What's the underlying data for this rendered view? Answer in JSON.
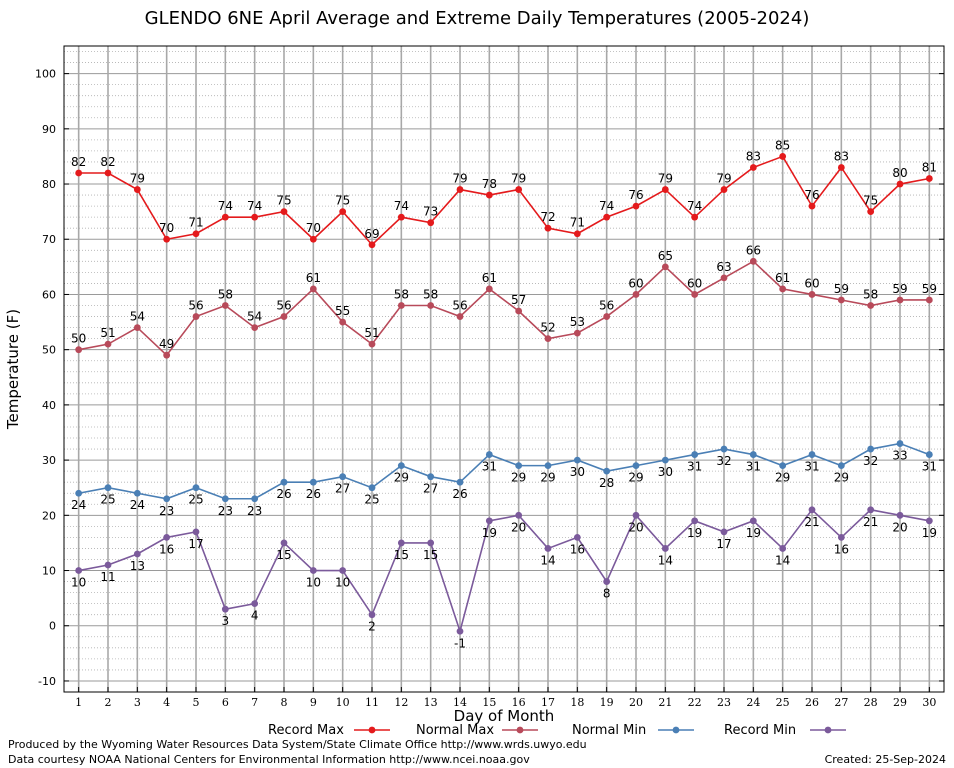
{
  "chart_data": {
    "type": "line",
    "title": "GLENDO 6NE April Average and Extreme Daily Temperatures (2005-2024)",
    "xlabel": "Day of Month",
    "ylabel": "Temperature (F)",
    "xlim": [
      0.5,
      30.5
    ],
    "ylim": [
      -12,
      105
    ],
    "x": [
      1,
      2,
      3,
      4,
      5,
      6,
      7,
      8,
      9,
      10,
      11,
      12,
      13,
      14,
      15,
      16,
      17,
      18,
      19,
      20,
      21,
      22,
      23,
      24,
      25,
      26,
      27,
      28,
      29,
      30
    ],
    "yticks": [
      -10,
      0,
      10,
      20,
      30,
      40,
      50,
      60,
      70,
      80,
      90,
      100
    ],
    "grid": true,
    "legend_position": "bottom",
    "series": [
      {
        "name": "Record Max",
        "color": "#e41a1c",
        "label_position": "above",
        "values": [
          82,
          82,
          79,
          70,
          71,
          74,
          74,
          75,
          70,
          75,
          69,
          74,
          73,
          79,
          78,
          79,
          72,
          71,
          74,
          76,
          79,
          74,
          79,
          83,
          85,
          76,
          83,
          75,
          80,
          81
        ]
      },
      {
        "name": "Normal Max",
        "color": "#b84a5a",
        "label_position": "above",
        "values": [
          50,
          51,
          54,
          49,
          56,
          58,
          54,
          56,
          61,
          55,
          51,
          58,
          58,
          56,
          61,
          57,
          52,
          53,
          56,
          60,
          65,
          60,
          63,
          66,
          61,
          60,
          59,
          58,
          59,
          59
        ]
      },
      {
        "name": "Normal Min",
        "color": "#4a7fb5",
        "label_position": "below",
        "values": [
          24,
          25,
          24,
          23,
          25,
          23,
          23,
          26,
          26,
          27,
          25,
          29,
          27,
          26,
          31,
          29,
          29,
          30,
          28,
          29,
          30,
          31,
          32,
          31,
          29,
          31,
          29,
          32,
          33,
          31
        ]
      },
      {
        "name": "Record Min",
        "color": "#7b5a9b",
        "label_position": "below",
        "values": [
          10,
          11,
          13,
          16,
          17,
          3,
          4,
          15,
          10,
          10,
          2,
          15,
          15,
          -1,
          19,
          20,
          14,
          16,
          8,
          20,
          14,
          19,
          17,
          19,
          14,
          21,
          16,
          21,
          20,
          19
        ]
      }
    ]
  },
  "footer": {
    "produced_by": "Produced by the Wyoming Water Resources Data System/State Climate Office http://www.wrds.uwyo.edu",
    "data_courtesy": "Data courtesy NOAA National Centers for Environmental Information http://www.ncei.noaa.gov",
    "created": "Created:  25-Sep-2024"
  }
}
